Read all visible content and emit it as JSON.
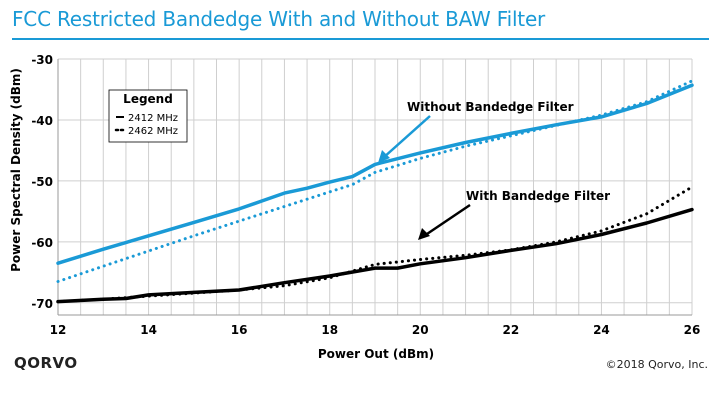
{
  "page": {
    "title": "FCC Restricted Bandedge With and Without BAW Filter",
    "brand": "QORVO",
    "copyright": "©2018 Qorvo, Inc.",
    "title_color": "#1a9ad6"
  },
  "chart_data": {
    "type": "line",
    "title": "FCC Restricted Bandedge With and Without BAW Filter",
    "xlabel": "Power Out (dBm)",
    "ylabel": "Power Spectral Density (dBm)",
    "xlim": [
      12,
      26
    ],
    "ylim": [
      -72,
      -30
    ],
    "xticks": [
      12,
      14,
      16,
      18,
      20,
      22,
      24,
      26
    ],
    "yticks": [
      -30,
      -40,
      -50,
      -60,
      -70
    ],
    "minor_x_step": 0.5,
    "grid": true,
    "legend": {
      "title": "Legend",
      "position": "top-left",
      "entries": [
        {
          "label": "2412 MHz",
          "style": "solid"
        },
        {
          "label": "2462 MHz",
          "style": "dotted"
        }
      ]
    },
    "annotations": [
      {
        "text": "Without Bandedge Filter",
        "arrow_to": [
          19.1,
          -48.9
        ]
      },
      {
        "text": "With Bandedge Filter",
        "arrow_to": [
          19.9,
          -62.6
        ]
      }
    ],
    "series": [
      {
        "group": "Without Bandedge Filter",
        "frequency": "2412 MHz",
        "style": "solid",
        "color": "#1a9ad6",
        "x": [
          12,
          13,
          14,
          15,
          16,
          16.5,
          17,
          17.5,
          18,
          18.5,
          19,
          20,
          21,
          22,
          23,
          24,
          25,
          26
        ],
        "y": [
          -63.5,
          -61.2,
          -59.0,
          -56.8,
          -54.6,
          -53.3,
          -52.0,
          -51.2,
          -50.2,
          -49.3,
          -47.3,
          -45.4,
          -43.7,
          -42.2,
          -40.8,
          -39.5,
          -37.3,
          -34.3
        ]
      },
      {
        "group": "Without Bandedge Filter",
        "frequency": "2462 MHz",
        "style": "dotted",
        "color": "#1a9ad6",
        "x": [
          12,
          13,
          14,
          15,
          16,
          17,
          18,
          18.5,
          19,
          20,
          21,
          22,
          23,
          24,
          25,
          26
        ],
        "y": [
          -66.5,
          -64.0,
          -61.5,
          -59.0,
          -56.6,
          -54.2,
          -51.8,
          -50.6,
          -48.6,
          -46.3,
          -44.3,
          -42.6,
          -40.9,
          -39.2,
          -37.0,
          -33.6
        ]
      },
      {
        "group": "With Bandedge Filter",
        "frequency": "2412 MHz",
        "style": "solid",
        "color": "#000000",
        "x": [
          12,
          13,
          13.5,
          14,
          15,
          16,
          17,
          18,
          19,
          19.5,
          20,
          21,
          22,
          23,
          24,
          25,
          26
        ],
        "y": [
          -69.8,
          -69.4,
          -69.3,
          -68.7,
          -68.3,
          -67.9,
          -66.7,
          -65.6,
          -64.3,
          -64.3,
          -63.6,
          -62.6,
          -61.4,
          -60.3,
          -58.8,
          -56.9,
          -54.7
        ]
      },
      {
        "group": "With Bandedge Filter",
        "frequency": "2462 MHz",
        "style": "dotted",
        "color": "#000000",
        "x": [
          12,
          13,
          14,
          15,
          16,
          17,
          18,
          19,
          20,
          21,
          22,
          23,
          24,
          25,
          26
        ],
        "y": [
          -69.8,
          -69.4,
          -68.9,
          -68.4,
          -67.9,
          -67.2,
          -65.9,
          -63.7,
          -62.9,
          -62.2,
          -61.3,
          -60.0,
          -58.2,
          -55.4,
          -51.0
        ]
      }
    ]
  }
}
